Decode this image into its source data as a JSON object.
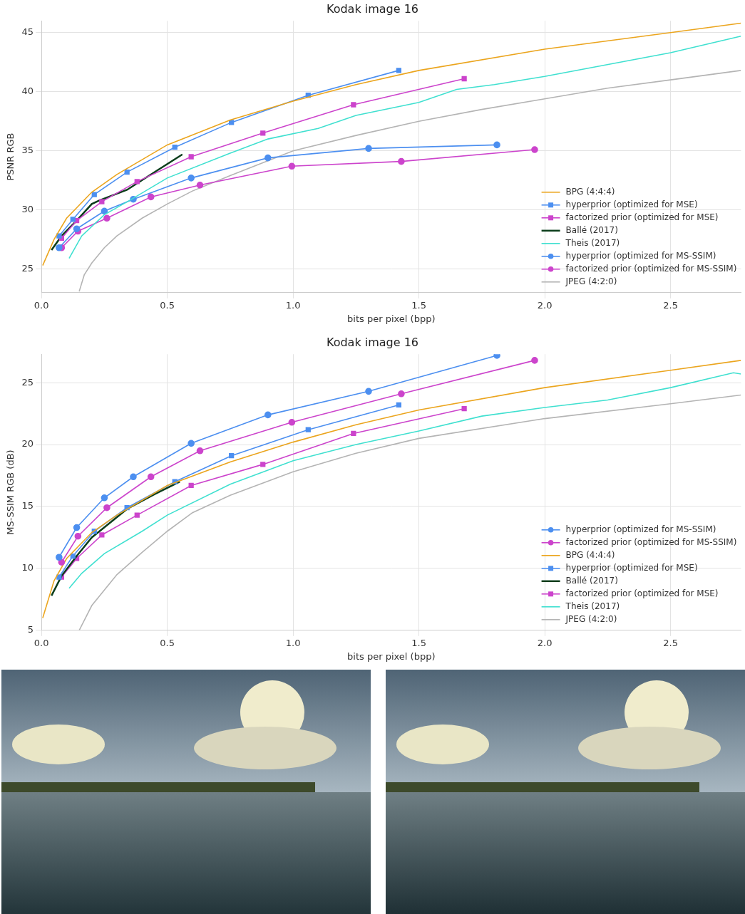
{
  "chart_data": [
    {
      "type": "line",
      "title": "Kodak image 16",
      "x_label": "bits per pixel (bpp)",
      "y_label": "PSNR RGB",
      "xlim": [
        0,
        2.78
      ],
      "ylim": [
        23,
        46
      ],
      "xticks": [
        {
          "value": 0,
          "label": "0.0"
        },
        0.5,
        {
          "value": 1,
          "label": "1.0"
        },
        1.5,
        {
          "value": 2,
          "label": "2.0"
        },
        2.5
      ],
      "yticks": [
        25,
        30,
        35,
        40,
        45
      ],
      "grid": true,
      "legend": "lower right",
      "series": [
        {
          "name": "BPG (4:4:4)",
          "color": "#eba51e",
          "marker": "none",
          "x": [
            0.005,
            0.05,
            0.1,
            0.2,
            0.3,
            0.5,
            0.75,
            1.0,
            1.25,
            1.5,
            2.0,
            2.5,
            2.78
          ],
          "values": [
            25.3,
            27.5,
            29.3,
            31.5,
            33.0,
            35.5,
            37.6,
            39.2,
            40.6,
            41.8,
            43.6,
            45.0,
            45.8
          ]
        },
        {
          "name": "hyperprior (optimized for MSE)",
          "color": "#4c8ff0",
          "marker": "square",
          "x": [
            0.07,
            0.125,
            0.21,
            0.34,
            0.53,
            0.755,
            1.06,
            1.42
          ],
          "values": [
            27.8,
            29.2,
            31.3,
            33.2,
            35.3,
            37.4,
            39.7,
            41.8
          ]
        },
        {
          "name": "factorized prior (optimized for MSE)",
          "color": "#cc44cc",
          "marker": "square",
          "x": [
            0.08,
            0.14,
            0.24,
            0.38,
            0.595,
            0.88,
            1.24,
            1.68
          ],
          "values": [
            27.6,
            29.1,
            30.7,
            32.4,
            34.5,
            36.5,
            38.9,
            41.1
          ]
        },
        {
          "name": "Ballé (2017)",
          "color": "#0b3d1b",
          "marker": "none",
          "x": [
            0.04,
            0.08,
            0.14,
            0.2,
            0.23,
            0.34,
            0.45,
            0.56
          ],
          "values": [
            26.6,
            27.8,
            29.1,
            30.5,
            30.8,
            31.7,
            33.2,
            34.7
          ]
        },
        {
          "name": "Theis (2017)",
          "color": "#40e0d0",
          "marker": "none",
          "x": [
            0.11,
            0.16,
            0.25,
            0.35,
            0.5,
            0.75,
            0.9,
            1.1,
            1.25,
            1.5,
            1.65,
            1.8,
            2.0,
            2.5,
            2.78
          ],
          "values": [
            25.9,
            27.8,
            29.6,
            30.8,
            32.7,
            34.8,
            36.0,
            36.9,
            38.0,
            39.1,
            40.2,
            40.6,
            41.3,
            43.3,
            44.7
          ]
        },
        {
          "name": "hyperprior (optimized for MS-SSIM)",
          "color": "#4c8ff0",
          "marker": "circle",
          "x": [
            0.07,
            0.14,
            0.25,
            0.365,
            0.595,
            0.9,
            1.3,
            1.81
          ],
          "values": [
            26.8,
            28.4,
            29.9,
            30.9,
            32.7,
            34.4,
            35.2,
            35.5
          ]
        },
        {
          "name": "factorized prior (optimized for MS-SSIM)",
          "color": "#cc44cc",
          "marker": "circle",
          "x": [
            0.08,
            0.145,
            0.26,
            0.435,
            0.63,
            0.995,
            1.43,
            1.96
          ],
          "values": [
            26.8,
            28.2,
            29.3,
            31.1,
            32.1,
            33.7,
            34.1,
            35.1
          ]
        },
        {
          "name": "JPEG (4:2:0)",
          "color": "#b4b4b4",
          "marker": "none",
          "x": [
            0.15,
            0.17,
            0.2,
            0.25,
            0.3,
            0.4,
            0.5,
            0.6,
            0.75,
            1.0,
            1.25,
            1.5,
            1.75,
            2.0,
            2.25,
            2.5,
            2.78
          ],
          "values": [
            23.1,
            24.5,
            25.5,
            26.8,
            27.8,
            29.3,
            30.5,
            31.6,
            32.9,
            35.0,
            36.3,
            37.5,
            38.5,
            39.4,
            40.3,
            41.0,
            41.8
          ]
        }
      ]
    },
    {
      "type": "line",
      "title": "Kodak image 16",
      "x_label": "bits per pixel (bpp)",
      "y_label": "MS-SSIM RGB (dB)",
      "xlim": [
        0,
        2.78
      ],
      "ylim": [
        5,
        27.3
      ],
      "xticks": [
        {
          "value": 0,
          "label": "0.0"
        },
        0.5,
        {
          "value": 1,
          "label": "1.0"
        },
        1.5,
        {
          "value": 2,
          "label": "2.0"
        },
        2.5
      ],
      "yticks": [
        5,
        10,
        15,
        20,
        25
      ],
      "grid": true,
      "legend": "lower right",
      "series": [
        {
          "name": "hyperprior (optimized for MS-SSIM)",
          "color": "#4c8ff0",
          "marker": "circle",
          "x": [
            0.07,
            0.14,
            0.25,
            0.365,
            0.595,
            0.9,
            1.3,
            1.81
          ],
          "values": [
            10.9,
            13.3,
            15.7,
            17.4,
            20.1,
            22.4,
            24.3,
            27.2
          ]
        },
        {
          "name": "factorized prior (optimized for MS-SSIM)",
          "color": "#cc44cc",
          "marker": "circle",
          "x": [
            0.08,
            0.145,
            0.26,
            0.435,
            0.63,
            0.995,
            1.43,
            1.96
          ],
          "values": [
            10.5,
            12.6,
            14.9,
            17.4,
            19.5,
            21.8,
            24.1,
            26.8
          ]
        },
        {
          "name": "BPG (4:4:4)",
          "color": "#eba51e",
          "marker": "none",
          "x": [
            0.005,
            0.05,
            0.1,
            0.2,
            0.3,
            0.5,
            0.75,
            1.0,
            1.25,
            1.5,
            2.0,
            2.5,
            2.78
          ],
          "values": [
            6.0,
            9.0,
            10.8,
            12.9,
            14.3,
            16.7,
            18.6,
            20.2,
            21.6,
            22.8,
            24.6,
            26.0,
            26.8
          ]
        },
        {
          "name": "hyperprior (optimized for MSE)",
          "color": "#4c8ff0",
          "marker": "square",
          "x": [
            0.07,
            0.125,
            0.21,
            0.34,
            0.53,
            0.755,
            1.06,
            1.42
          ],
          "values": [
            9.3,
            11.0,
            13.0,
            14.9,
            17.0,
            19.1,
            21.2,
            23.2
          ]
        },
        {
          "name": "Ballé (2017)",
          "color": "#0b3d1b",
          "marker": "none",
          "x": [
            0.04,
            0.08,
            0.14,
            0.2,
            0.34,
            0.45,
            0.55
          ],
          "values": [
            7.8,
            9.4,
            11.0,
            12.5,
            14.8,
            16.0,
            17.0
          ]
        },
        {
          "name": "factorized prior (optimized for MSE)",
          "color": "#cc44cc",
          "marker": "square",
          "x": [
            0.08,
            0.14,
            0.24,
            0.38,
            0.595,
            0.88,
            1.24,
            1.68
          ],
          "values": [
            9.3,
            10.8,
            12.7,
            14.3,
            16.7,
            18.4,
            20.9,
            22.9
          ]
        },
        {
          "name": "Theis (2017)",
          "color": "#40e0d0",
          "marker": "none",
          "x": [
            0.11,
            0.16,
            0.25,
            0.4,
            0.5,
            0.75,
            1.0,
            1.25,
            1.5,
            1.75,
            2.0,
            2.25,
            2.5,
            2.75,
            2.78
          ],
          "values": [
            8.4,
            9.6,
            11.2,
            13.0,
            14.3,
            16.8,
            18.7,
            20.0,
            21.1,
            22.3,
            23.0,
            23.6,
            24.6,
            25.8,
            25.7
          ]
        },
        {
          "name": "JPEG (4:2:0)",
          "color": "#b4b4b4",
          "marker": "none",
          "x": [
            0.15,
            0.2,
            0.3,
            0.4,
            0.5,
            0.6,
            0.75,
            1.0,
            1.25,
            1.5,
            2.0,
            2.5,
            2.78
          ],
          "values": [
            5.0,
            7.0,
            9.5,
            11.3,
            13.0,
            14.5,
            15.9,
            17.8,
            19.3,
            20.5,
            22.1,
            23.3,
            24.0
          ]
        }
      ]
    }
  ]
}
